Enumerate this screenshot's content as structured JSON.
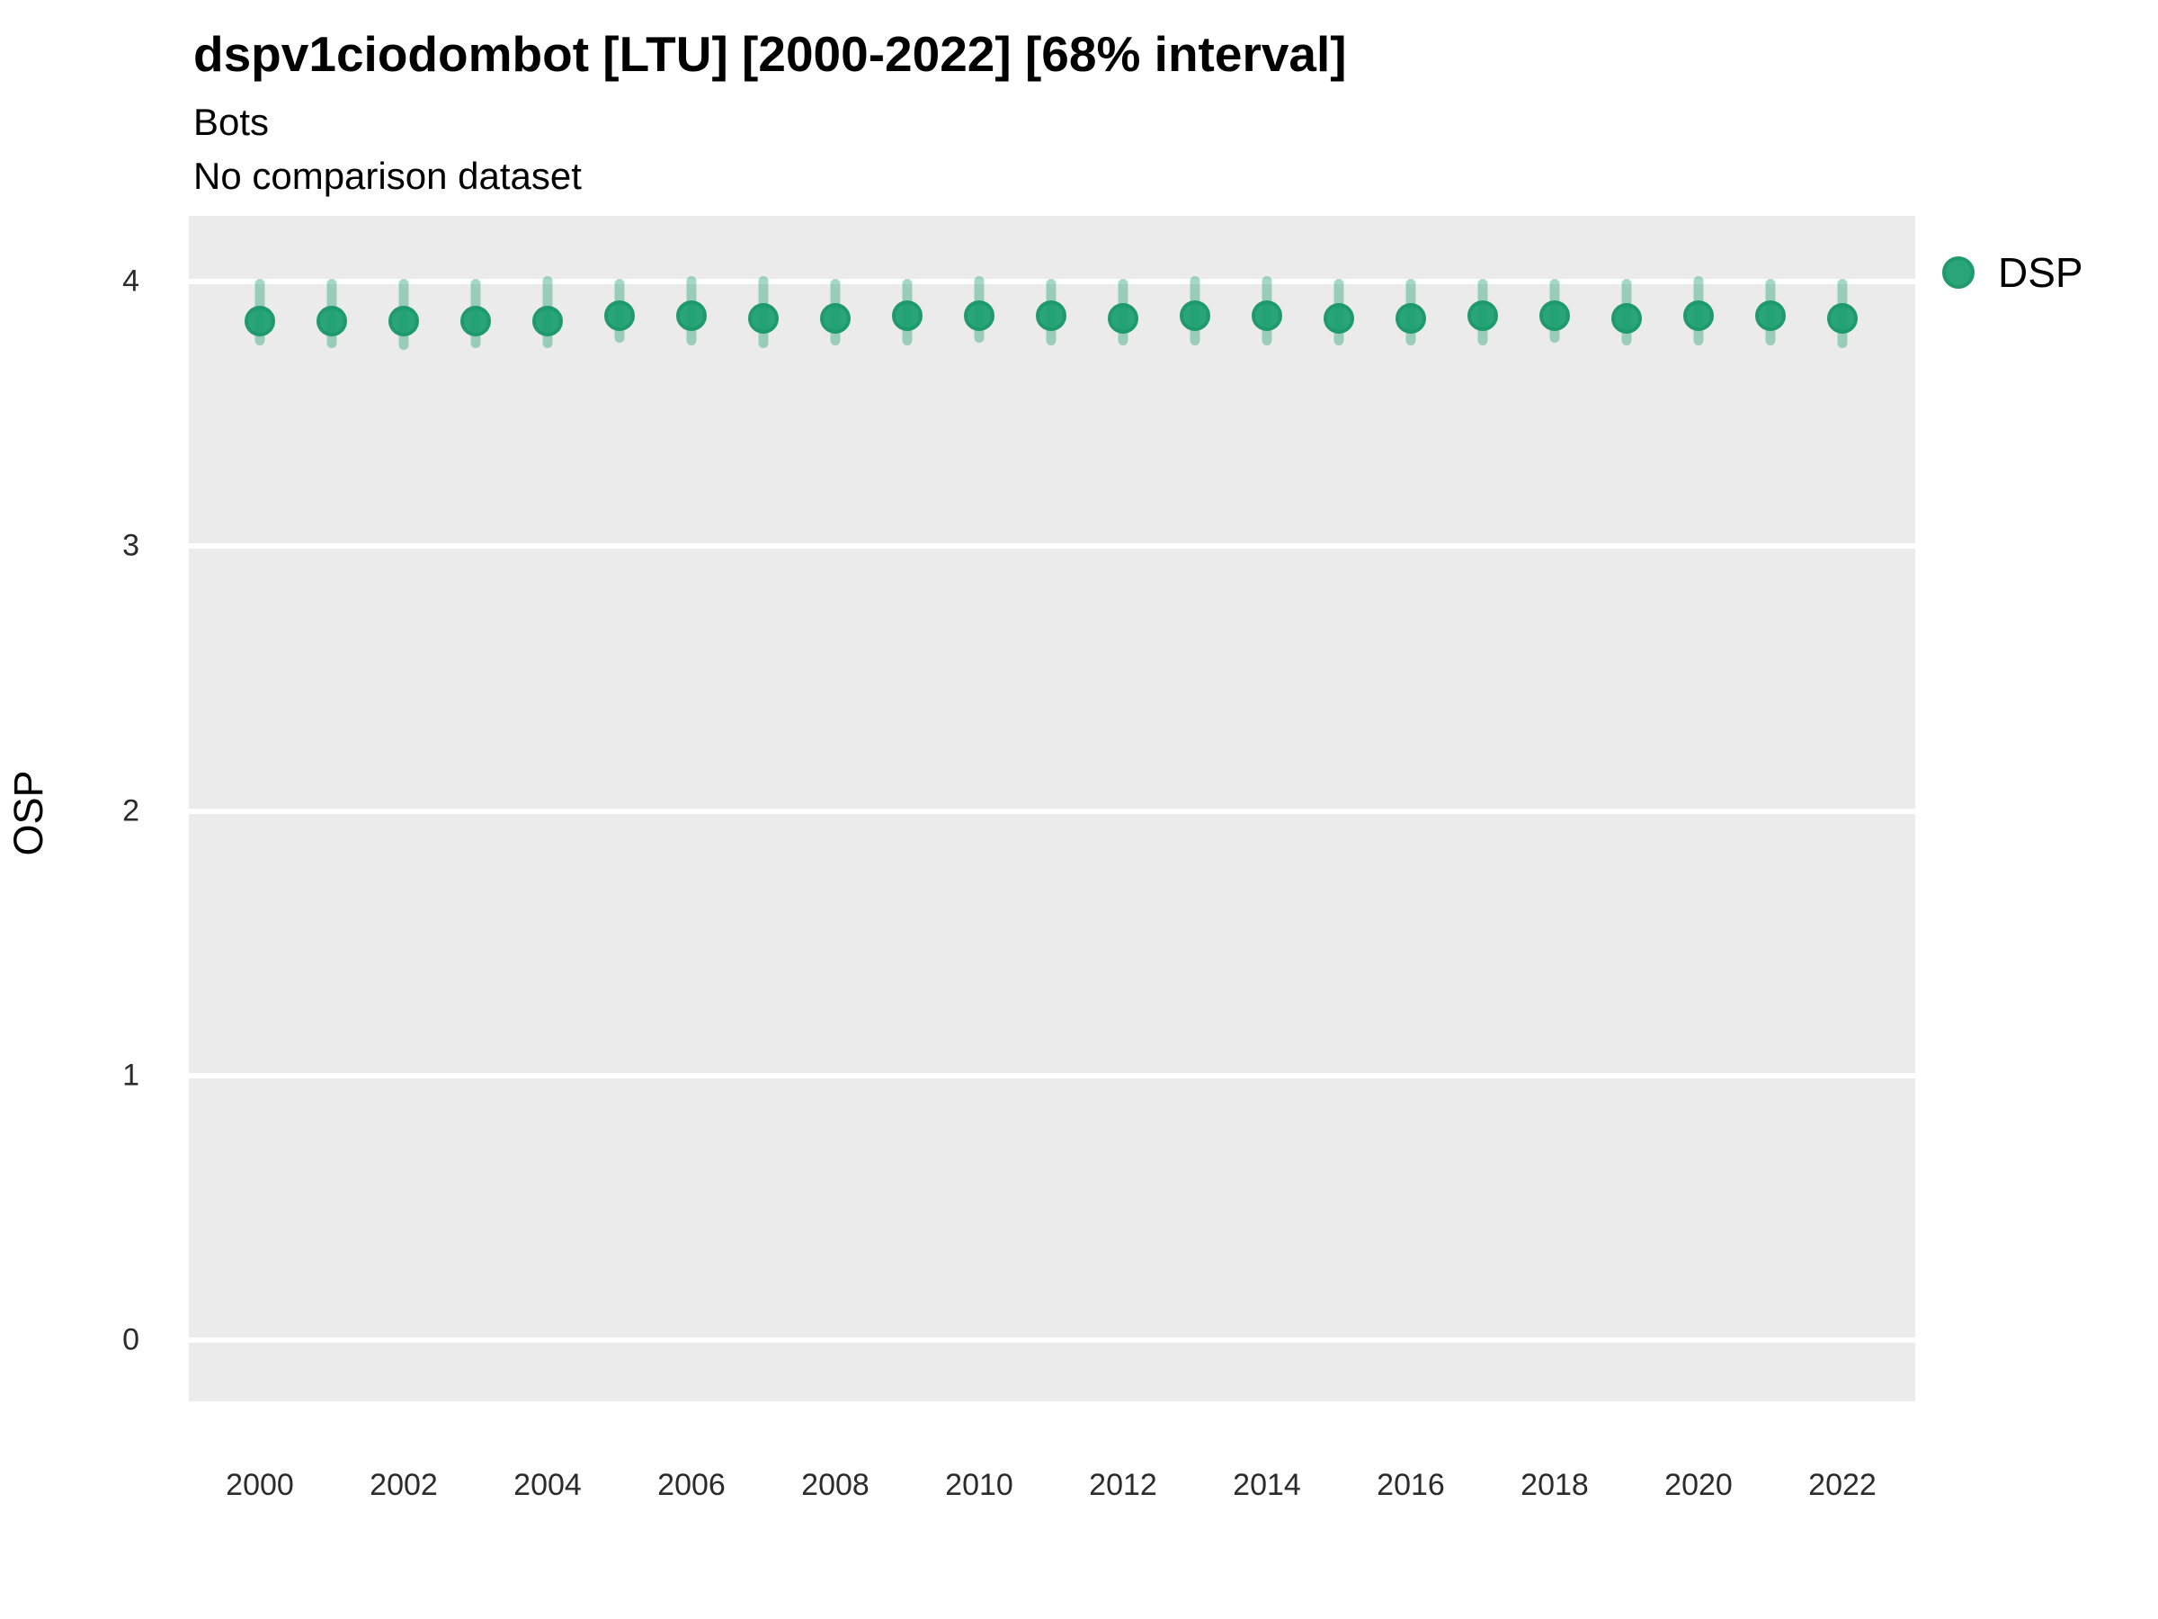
{
  "header": {
    "title": "dspv1ciodombot [LTU] [2000-2022] [68% interval]",
    "subtitle": "Bots",
    "note": "No comparison dataset"
  },
  "legend": {
    "position": "right",
    "items": [
      {
        "label": "DSP",
        "color": "#2aa578"
      }
    ]
  },
  "colors": {
    "point_fill": "#2aa578",
    "point_ring": "#1e9a6b",
    "interval": "rgba(31,158,111,0.40)",
    "panel_background": "#ebebeb",
    "gridline": "#ffffff",
    "title_text": "#000000",
    "tick_text": "#2b2b2b"
  },
  "chart_data": {
    "type": "scatter",
    "subtype": "pointrange-68pct-interval",
    "title": "dspv1ciodombot [LTU] [2000-2022] [68% interval]",
    "subtitle": "Bots",
    "annotation": "No comparison dataset",
    "xlabel": "",
    "ylabel": "OSP",
    "xlim": [
      1999,
      2023
    ],
    "ylim": [
      -0.24,
      4.25
    ],
    "xticks": [
      2000,
      2002,
      2004,
      2006,
      2008,
      2010,
      2012,
      2014,
      2016,
      2018,
      2020,
      2022
    ],
    "yticks": [
      0,
      1,
      2,
      3,
      4
    ],
    "grid": "horizontal-major-white-on-grey",
    "legend_position": "right",
    "series": [
      {
        "name": "DSP",
        "points": [
          {
            "x": 2000,
            "y": 3.85,
            "low": 3.76,
            "high": 4.01
          },
          {
            "x": 2001,
            "y": 3.85,
            "low": 3.75,
            "high": 4.01
          },
          {
            "x": 2002,
            "y": 3.85,
            "low": 3.74,
            "high": 4.01
          },
          {
            "x": 2003,
            "y": 3.85,
            "low": 3.75,
            "high": 4.01
          },
          {
            "x": 2004,
            "y": 3.85,
            "low": 3.75,
            "high": 4.02
          },
          {
            "x": 2005,
            "y": 3.87,
            "low": 3.77,
            "high": 4.01
          },
          {
            "x": 2006,
            "y": 3.87,
            "low": 3.76,
            "high": 4.02
          },
          {
            "x": 2007,
            "y": 3.86,
            "low": 3.75,
            "high": 4.02
          },
          {
            "x": 2008,
            "y": 3.86,
            "low": 3.76,
            "high": 4.01
          },
          {
            "x": 2009,
            "y": 3.87,
            "low": 3.76,
            "high": 4.01
          },
          {
            "x": 2010,
            "y": 3.87,
            "low": 3.77,
            "high": 4.02
          },
          {
            "x": 2011,
            "y": 3.87,
            "low": 3.76,
            "high": 4.01
          },
          {
            "x": 2012,
            "y": 3.86,
            "low": 3.76,
            "high": 4.01
          },
          {
            "x": 2013,
            "y": 3.87,
            "low": 3.76,
            "high": 4.02
          },
          {
            "x": 2014,
            "y": 3.87,
            "low": 3.76,
            "high": 4.02
          },
          {
            "x": 2015,
            "y": 3.86,
            "low": 3.76,
            "high": 4.01
          },
          {
            "x": 2016,
            "y": 3.86,
            "low": 3.76,
            "high": 4.01
          },
          {
            "x": 2017,
            "y": 3.87,
            "low": 3.76,
            "high": 4.01
          },
          {
            "x": 2018,
            "y": 3.87,
            "low": 3.77,
            "high": 4.01
          },
          {
            "x": 2019,
            "y": 3.86,
            "low": 3.76,
            "high": 4.01
          },
          {
            "x": 2020,
            "y": 3.87,
            "low": 3.76,
            "high": 4.02
          },
          {
            "x": 2021,
            "y": 3.87,
            "low": 3.76,
            "high": 4.01
          },
          {
            "x": 2022,
            "y": 3.86,
            "low": 3.75,
            "high": 4.01
          }
        ]
      }
    ]
  }
}
